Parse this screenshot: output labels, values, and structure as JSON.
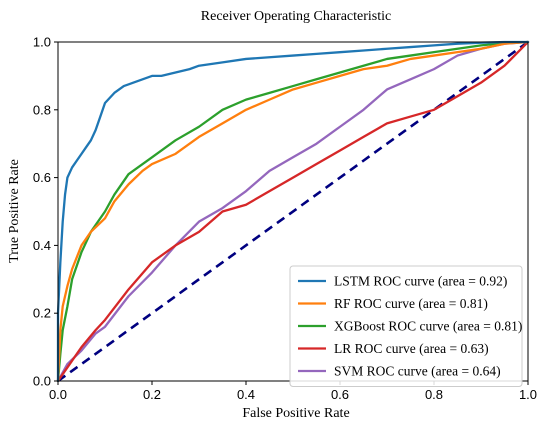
{
  "chart_data": {
    "type": "line",
    "title": "Receiver Operating Characteristic",
    "xlabel": "False Positive Rate",
    "ylabel": "True Positive Rate",
    "xlim": [
      0.0,
      1.0
    ],
    "ylim": [
      0.0,
      1.0
    ],
    "x_ticks": [
      "0.0",
      "0.2",
      "0.4",
      "0.6",
      "0.8",
      "1.0"
    ],
    "y_ticks": [
      "0.0",
      "0.2",
      "0.4",
      "0.6",
      "0.8",
      "1.0"
    ],
    "grid": false,
    "legend_position": "bottom-right",
    "series": [
      {
        "name": "LSTM ROC curve (area = 0.92)",
        "color": "#1f77b4",
        "x": [
          0.0,
          0.0,
          0.005,
          0.01,
          0.015,
          0.02,
          0.03,
          0.04,
          0.05,
          0.06,
          0.07,
          0.08,
          0.09,
          0.1,
          0.12,
          0.14,
          0.16,
          0.18,
          0.2,
          0.22,
          0.25,
          0.28,
          0.3,
          0.35,
          0.4,
          0.45,
          0.5,
          0.55,
          0.6,
          0.65,
          0.7,
          0.75,
          0.8,
          0.85,
          0.9,
          0.95,
          1.0
        ],
        "y": [
          0.0,
          0.2,
          0.35,
          0.47,
          0.55,
          0.6,
          0.63,
          0.65,
          0.67,
          0.69,
          0.71,
          0.74,
          0.78,
          0.82,
          0.85,
          0.87,
          0.88,
          0.89,
          0.9,
          0.9,
          0.91,
          0.92,
          0.93,
          0.94,
          0.95,
          0.955,
          0.96,
          0.965,
          0.97,
          0.975,
          0.98,
          0.985,
          0.99,
          0.995,
          0.998,
          1.0,
          1.0
        ]
      },
      {
        "name": "RF ROC curve (area = 0.81)",
        "color": "#ff7f0e",
        "x": [
          0.0,
          0.005,
          0.01,
          0.02,
          0.03,
          0.05,
          0.07,
          0.1,
          0.12,
          0.15,
          0.18,
          0.2,
          0.25,
          0.3,
          0.35,
          0.4,
          0.45,
          0.5,
          0.55,
          0.6,
          0.65,
          0.7,
          0.75,
          0.8,
          0.85,
          0.9,
          0.95,
          1.0
        ],
        "y": [
          0.0,
          0.15,
          0.22,
          0.28,
          0.33,
          0.4,
          0.44,
          0.48,
          0.53,
          0.58,
          0.62,
          0.64,
          0.67,
          0.72,
          0.76,
          0.8,
          0.83,
          0.86,
          0.88,
          0.9,
          0.92,
          0.93,
          0.95,
          0.96,
          0.97,
          0.98,
          0.995,
          1.0
        ]
      },
      {
        "name": "XGBoost ROC curve (area = 0.81)",
        "color": "#2ca02c",
        "x": [
          0.0,
          0.005,
          0.01,
          0.02,
          0.03,
          0.05,
          0.07,
          0.1,
          0.12,
          0.15,
          0.18,
          0.2,
          0.25,
          0.3,
          0.35,
          0.4,
          0.45,
          0.5,
          0.55,
          0.6,
          0.65,
          0.7,
          0.75,
          0.8,
          0.85,
          0.9,
          0.95,
          1.0
        ],
        "y": [
          0.0,
          0.08,
          0.15,
          0.22,
          0.3,
          0.38,
          0.44,
          0.5,
          0.55,
          0.61,
          0.64,
          0.66,
          0.71,
          0.75,
          0.8,
          0.83,
          0.85,
          0.87,
          0.89,
          0.91,
          0.93,
          0.95,
          0.96,
          0.97,
          0.98,
          0.99,
          0.997,
          1.0
        ]
      },
      {
        "name": "LR ROC curve (area = 0.63)",
        "color": "#d62728",
        "x": [
          0.0,
          0.02,
          0.05,
          0.08,
          0.1,
          0.15,
          0.2,
          0.25,
          0.3,
          0.35,
          0.4,
          0.45,
          0.5,
          0.55,
          0.6,
          0.65,
          0.7,
          0.75,
          0.8,
          0.85,
          0.9,
          0.95,
          1.0
        ],
        "y": [
          0.0,
          0.04,
          0.1,
          0.15,
          0.18,
          0.27,
          0.35,
          0.4,
          0.44,
          0.5,
          0.52,
          0.56,
          0.6,
          0.64,
          0.68,
          0.72,
          0.76,
          0.78,
          0.8,
          0.84,
          0.88,
          0.93,
          1.0
        ]
      },
      {
        "name": "SVM ROC curve (area = 0.64)",
        "color": "#9467bd",
        "x": [
          0.0,
          0.02,
          0.05,
          0.08,
          0.1,
          0.15,
          0.2,
          0.25,
          0.3,
          0.35,
          0.4,
          0.45,
          0.5,
          0.55,
          0.6,
          0.65,
          0.7,
          0.75,
          0.8,
          0.85,
          0.9,
          0.95,
          1.0
        ],
        "y": [
          0.0,
          0.05,
          0.09,
          0.14,
          0.16,
          0.25,
          0.32,
          0.4,
          0.47,
          0.51,
          0.56,
          0.62,
          0.66,
          0.7,
          0.75,
          0.8,
          0.86,
          0.89,
          0.92,
          0.96,
          0.98,
          0.995,
          1.0
        ]
      }
    ],
    "reference_line": {
      "color": "#000080",
      "x": [
        0.0,
        1.0
      ],
      "y": [
        0.0,
        1.0
      ]
    }
  }
}
